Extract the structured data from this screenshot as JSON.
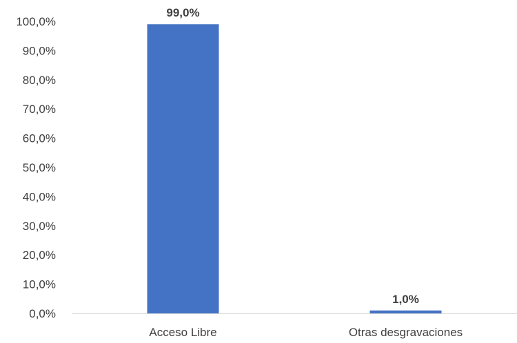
{
  "chart_data": {
    "type": "bar",
    "categories": [
      "Acceso Libre",
      "Otras desgravaciones"
    ],
    "values": [
      99.0,
      1.0
    ],
    "data_labels": [
      "99,0%",
      "1,0%"
    ],
    "ylim": [
      0,
      100
    ],
    "yticks": [
      0,
      10,
      20,
      30,
      40,
      50,
      60,
      70,
      80,
      90,
      100
    ],
    "ytick_labels": [
      "0,0%",
      "10,0%",
      "20,0%",
      "30,0%",
      "40,0%",
      "50,0%",
      "60,0%",
      "70,0%",
      "80,0%",
      "90,0%",
      "100,0%"
    ],
    "grid": false,
    "legend": "none",
    "title": "",
    "xlabel": "",
    "ylabel": "",
    "colors": {
      "bar": "#4472C4",
      "axis": "#d9d9d9",
      "text": "#3f3f3f"
    }
  }
}
